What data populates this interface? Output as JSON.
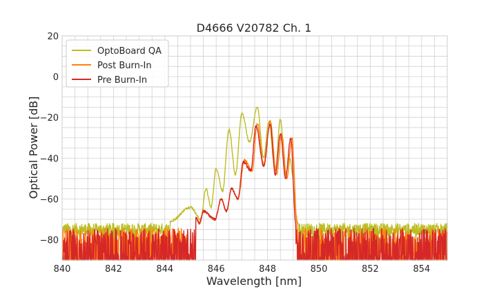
{
  "chart_data": {
    "type": "line",
    "title": "D4666 V20782 Ch. 1",
    "xlabel": "Wavelength [nm]",
    "ylabel": "Optical Power [dB]",
    "xlim": [
      840,
      855
    ],
    "ylim": [
      -90,
      20
    ],
    "xticks": [
      "840",
      "842",
      "844",
      "846",
      "848",
      "850",
      "852",
      "854"
    ],
    "yticks": [
      "20",
      "0",
      "−20",
      "−40",
      "−60",
      "−80"
    ],
    "grid": true,
    "legend_position": "top-left",
    "noise_floor_db": -80,
    "series": [
      {
        "name": "OptoBoard QA",
        "color": "#bcbd22",
        "peaks": [
          {
            "x": 844.2,
            "y": -71
          },
          {
            "x": 845.0,
            "y": -64
          },
          {
            "x": 845.6,
            "y": -55
          },
          {
            "x": 846.0,
            "y": -45
          },
          {
            "x": 846.5,
            "y": -26
          },
          {
            "x": 847.0,
            "y": -18
          },
          {
            "x": 847.6,
            "y": -15
          },
          {
            "x": 848.05,
            "y": -22
          },
          {
            "x": 848.5,
            "y": -21
          },
          {
            "x": 848.85,
            "y": -40
          },
          {
            "x": 849.2,
            "y": -72
          }
        ],
        "dips": [
          {
            "x": 845.4,
            "y": -70
          },
          {
            "x": 845.8,
            "y": -64
          },
          {
            "x": 846.25,
            "y": -56
          },
          {
            "x": 846.75,
            "y": -48
          },
          {
            "x": 847.3,
            "y": -32
          },
          {
            "x": 847.85,
            "y": -40
          },
          {
            "x": 848.3,
            "y": -46
          },
          {
            "x": 848.7,
            "y": -48
          }
        ]
      },
      {
        "name": "Post Burn-In",
        "color": "#ff7f0e",
        "peaks": [
          {
            "x": 845.2,
            "y": -69
          },
          {
            "x": 845.5,
            "y": -66
          },
          {
            "x": 846.2,
            "y": -60
          },
          {
            "x": 846.6,
            "y": -55
          },
          {
            "x": 847.1,
            "y": -41
          },
          {
            "x": 847.6,
            "y": -23
          },
          {
            "x": 848.1,
            "y": -22
          },
          {
            "x": 848.55,
            "y": -28
          },
          {
            "x": 848.95,
            "y": -30
          },
          {
            "x": 849.15,
            "y": -72
          }
        ],
        "dips": [
          {
            "x": 845.35,
            "y": -72
          },
          {
            "x": 845.95,
            "y": -70
          },
          {
            "x": 846.4,
            "y": -66
          },
          {
            "x": 846.85,
            "y": -60
          },
          {
            "x": 847.4,
            "y": -46
          },
          {
            "x": 847.85,
            "y": -43
          },
          {
            "x": 848.35,
            "y": -48
          },
          {
            "x": 848.75,
            "y": -50
          }
        ]
      },
      {
        "name": "Pre Burn-In",
        "color": "#d62728",
        "peaks": [
          {
            "x": 845.2,
            "y": -69
          },
          {
            "x": 845.5,
            "y": -66
          },
          {
            "x": 846.2,
            "y": -60
          },
          {
            "x": 846.6,
            "y": -55
          },
          {
            "x": 847.05,
            "y": -42
          },
          {
            "x": 847.55,
            "y": -24
          },
          {
            "x": 848.1,
            "y": -23
          },
          {
            "x": 848.5,
            "y": -28
          },
          {
            "x": 848.9,
            "y": -30
          },
          {
            "x": 849.1,
            "y": -72
          }
        ],
        "dips": [
          {
            "x": 845.35,
            "y": -72
          },
          {
            "x": 845.95,
            "y": -70
          },
          {
            "x": 846.4,
            "y": -66
          },
          {
            "x": 846.85,
            "y": -60
          },
          {
            "x": 847.35,
            "y": -46
          },
          {
            "x": 847.85,
            "y": -44
          },
          {
            "x": 848.3,
            "y": -48
          },
          {
            "x": 848.7,
            "y": -50
          }
        ]
      }
    ]
  }
}
